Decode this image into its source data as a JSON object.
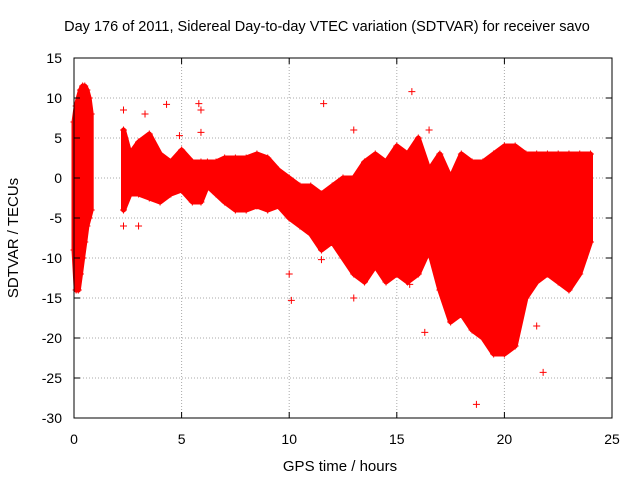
{
  "chart_data": {
    "type": "scatter",
    "title": "Day 176 of 2011, Sidereal Day-to-day VTEC variation (SDTVAR) for receiver savo",
    "xlabel": "GPS time / hours",
    "ylabel": "SDTVAR / TECUs",
    "xlim": [
      0,
      25
    ],
    "ylim": [
      -30,
      15
    ],
    "x_ticks": [
      "0",
      "5",
      "10",
      "15",
      "20",
      "25"
    ],
    "y_ticks": [
      "15",
      "10",
      "5",
      "0",
      "-5",
      "-10",
      "-15",
      "-20",
      "-25",
      "-30"
    ],
    "grid": true,
    "legend": "none",
    "series_color": "#ff0000",
    "bands": [
      {
        "x": 0.0,
        "low": -9,
        "high": 7
      },
      {
        "x": 0.1,
        "low": -14,
        "high": 9
      },
      {
        "x": 0.2,
        "low": -14,
        "high": 10
      },
      {
        "x": 0.3,
        "low": -12,
        "high": 11
      },
      {
        "x": 0.4,
        "low": -10,
        "high": 11.5
      },
      {
        "x": 0.5,
        "low": -8,
        "high": 11.5
      },
      {
        "x": 0.6,
        "low": -6,
        "high": 11
      },
      {
        "x": 0.7,
        "low": -5,
        "high": 10
      },
      {
        "x": 0.8,
        "low": -4,
        "high": 8
      },
      {
        "x": 2.3,
        "low": -4,
        "high": 6
      },
      {
        "x": 2.6,
        "low": -2,
        "high": 3
      },
      {
        "x": 3.0,
        "low": -2,
        "high": 4.5
      },
      {
        "x": 3.5,
        "low": -2.5,
        "high": 5.5
      },
      {
        "x": 4.0,
        "low": -3,
        "high": 3
      },
      {
        "x": 4.5,
        "low": -2,
        "high": 2
      },
      {
        "x": 5.0,
        "low": -1.5,
        "high": 3.5
      },
      {
        "x": 5.5,
        "low": -3,
        "high": 2
      },
      {
        "x": 5.9,
        "low": -3,
        "high": 2
      },
      {
        "x": 6.2,
        "low": -1,
        "high": 2
      },
      {
        "x": 6.6,
        "low": -2,
        "high": 2
      },
      {
        "x": 7.0,
        "low": -3,
        "high": 2.5
      },
      {
        "x": 7.5,
        "low": -4,
        "high": 2.5
      },
      {
        "x": 8.0,
        "low": -4,
        "high": 2.5
      },
      {
        "x": 8.5,
        "low": -3.5,
        "high": 3
      },
      {
        "x": 9.0,
        "low": -4,
        "high": 2.5
      },
      {
        "x": 9.5,
        "low": -3.5,
        "high": 1
      },
      {
        "x": 10.0,
        "low": -5,
        "high": 0
      },
      {
        "x": 10.5,
        "low": -6,
        "high": -1
      },
      {
        "x": 11.0,
        "low": -7,
        "high": -1
      },
      {
        "x": 11.5,
        "low": -9,
        "high": -2
      },
      {
        "x": 12.0,
        "low": -8,
        "high": -1
      },
      {
        "x": 12.5,
        "low": -10,
        "high": 0
      },
      {
        "x": 13.0,
        "low": -12,
        "high": 0
      },
      {
        "x": 13.5,
        "low": -13,
        "high": 2
      },
      {
        "x": 14.0,
        "low": -11,
        "high": 3
      },
      {
        "x": 14.5,
        "low": -13,
        "high": 2
      },
      {
        "x": 15.0,
        "low": -12,
        "high": 4
      },
      {
        "x": 15.5,
        "low": -13,
        "high": 3
      },
      {
        "x": 16.0,
        "low": -12,
        "high": 5
      },
      {
        "x": 16.5,
        "low": -9,
        "high": 1
      },
      {
        "x": 17.0,
        "low": -14,
        "high": 3
      },
      {
        "x": 17.5,
        "low": -18,
        "high": 0
      },
      {
        "x": 18.0,
        "low": -17,
        "high": 3
      },
      {
        "x": 18.5,
        "low": -19,
        "high": 2
      },
      {
        "x": 19.0,
        "low": -20,
        "high": 2
      },
      {
        "x": 19.5,
        "low": -22,
        "high": 3
      },
      {
        "x": 20.0,
        "low": -22,
        "high": 4
      },
      {
        "x": 20.5,
        "low": -21,
        "high": 4
      },
      {
        "x": 21.0,
        "low": -15,
        "high": 3
      },
      {
        "x": 21.5,
        "low": -13,
        "high": 3
      },
      {
        "x": 22.0,
        "low": -12,
        "high": 3
      },
      {
        "x": 22.5,
        "low": -13,
        "high": 3
      },
      {
        "x": 23.0,
        "low": -14,
        "high": 3
      },
      {
        "x": 23.5,
        "low": -12,
        "high": 3
      },
      {
        "x": 24.0,
        "low": -8,
        "high": 3
      }
    ],
    "outliers": [
      {
        "x": 2.3,
        "y": 8.5
      },
      {
        "x": 2.3,
        "y": -6
      },
      {
        "x": 3.0,
        "y": -6
      },
      {
        "x": 3.3,
        "y": 8
      },
      {
        "x": 4.3,
        "y": 9.2
      },
      {
        "x": 4.9,
        "y": 5.3
      },
      {
        "x": 5.8,
        "y": 9.3
      },
      {
        "x": 5.9,
        "y": 8.5
      },
      {
        "x": 5.9,
        "y": 5.7
      },
      {
        "x": 10.0,
        "y": -12
      },
      {
        "x": 10.1,
        "y": -15.3
      },
      {
        "x": 11.5,
        "y": -10.2
      },
      {
        "x": 11.6,
        "y": 9.3
      },
      {
        "x": 13.0,
        "y": 6.0
      },
      {
        "x": 13.0,
        "y": -15
      },
      {
        "x": 15.6,
        "y": -13.3
      },
      {
        "x": 15.7,
        "y": 10.8
      },
      {
        "x": 16.3,
        "y": -19.3
      },
      {
        "x": 18.7,
        "y": -28.3
      },
      {
        "x": 21.5,
        "y": -18.5
      },
      {
        "x": 21.8,
        "y": -24.3
      },
      {
        "x": 16.5,
        "y": 6.0
      }
    ]
  }
}
